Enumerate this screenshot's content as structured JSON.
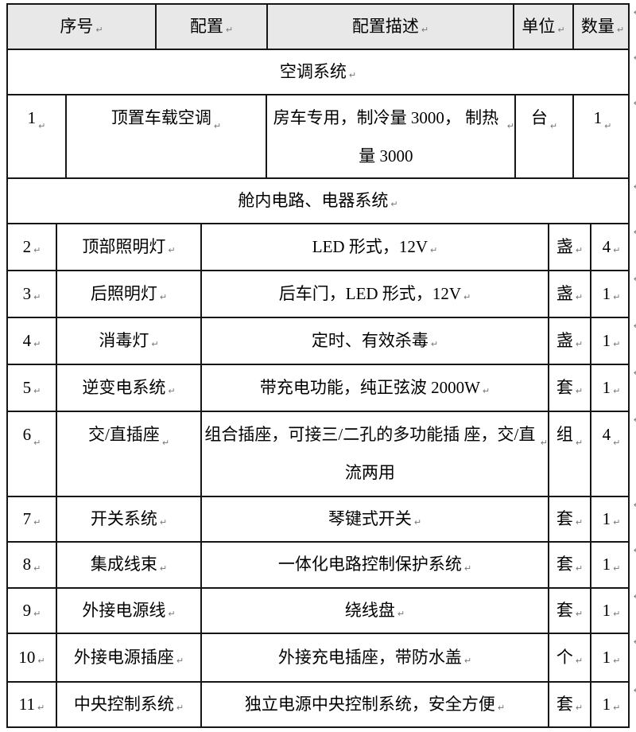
{
  "colors": {
    "header_background": "#e8e8e8",
    "border": "#161616",
    "text": "#000000"
  },
  "table": {
    "header": [
      "序号",
      "配置",
      "配置描述",
      "单位",
      "数量"
    ],
    "rows": [
      {
        "kind": "section",
        "label": "空调系统"
      },
      {
        "kind": "item",
        "group": "ac",
        "seq": "1",
        "config": "顶置车载空调",
        "desc": "房车专用，制冷量 3000，\n制热量 3000",
        "unit": "台",
        "qty": "1"
      },
      {
        "kind": "section",
        "label": "舱内电路、电器系统"
      },
      {
        "kind": "item",
        "group": "elec",
        "seq": "2",
        "config": "顶部照明灯",
        "desc": "LED 形式，12V",
        "unit": "盏",
        "qty": "4"
      },
      {
        "kind": "item",
        "group": "elec",
        "seq": "3",
        "config": "后照明灯",
        "desc": "后车门，LED 形式，12V",
        "unit": "盏",
        "qty": "1"
      },
      {
        "kind": "item",
        "group": "elec",
        "seq": "4",
        "config": "消毒灯",
        "desc": "定时、有效杀毒",
        "unit": "盏",
        "qty": "1"
      },
      {
        "kind": "item",
        "group": "elec",
        "seq": "5",
        "config": "逆变电系统",
        "desc": "带充电功能，纯正弦波 2000W",
        "unit": "套",
        "qty": "1"
      },
      {
        "kind": "item",
        "group": "elec",
        "seq": "6",
        "config": "交/直插座",
        "desc": "组合插座，可接三/二孔的多功能插\n座，交/直流两用",
        "unit": "组",
        "qty": "4"
      },
      {
        "kind": "item",
        "group": "elec",
        "seq": "7",
        "config": "开关系统",
        "desc": "琴键式开关",
        "unit": "套",
        "qty": "1"
      },
      {
        "kind": "item",
        "group": "elec",
        "seq": "8",
        "config": "集成线束",
        "desc": "一体化电路控制保护系统",
        "unit": "套",
        "qty": "1"
      },
      {
        "kind": "item",
        "group": "elec",
        "seq": "9",
        "config": "外接电源线",
        "desc": "绕线盘",
        "unit": "套",
        "qty": "1"
      },
      {
        "kind": "item",
        "group": "elec",
        "seq": "10",
        "config": "外接电源插座",
        "desc": "外接充电插座，带防水盖",
        "unit": "个",
        "qty": "1"
      },
      {
        "kind": "item",
        "group": "elec",
        "seq": "11",
        "config": "中央控制系统",
        "desc": "独立电源中央控制系统，安全方便",
        "unit": "套",
        "qty": "1"
      }
    ]
  }
}
